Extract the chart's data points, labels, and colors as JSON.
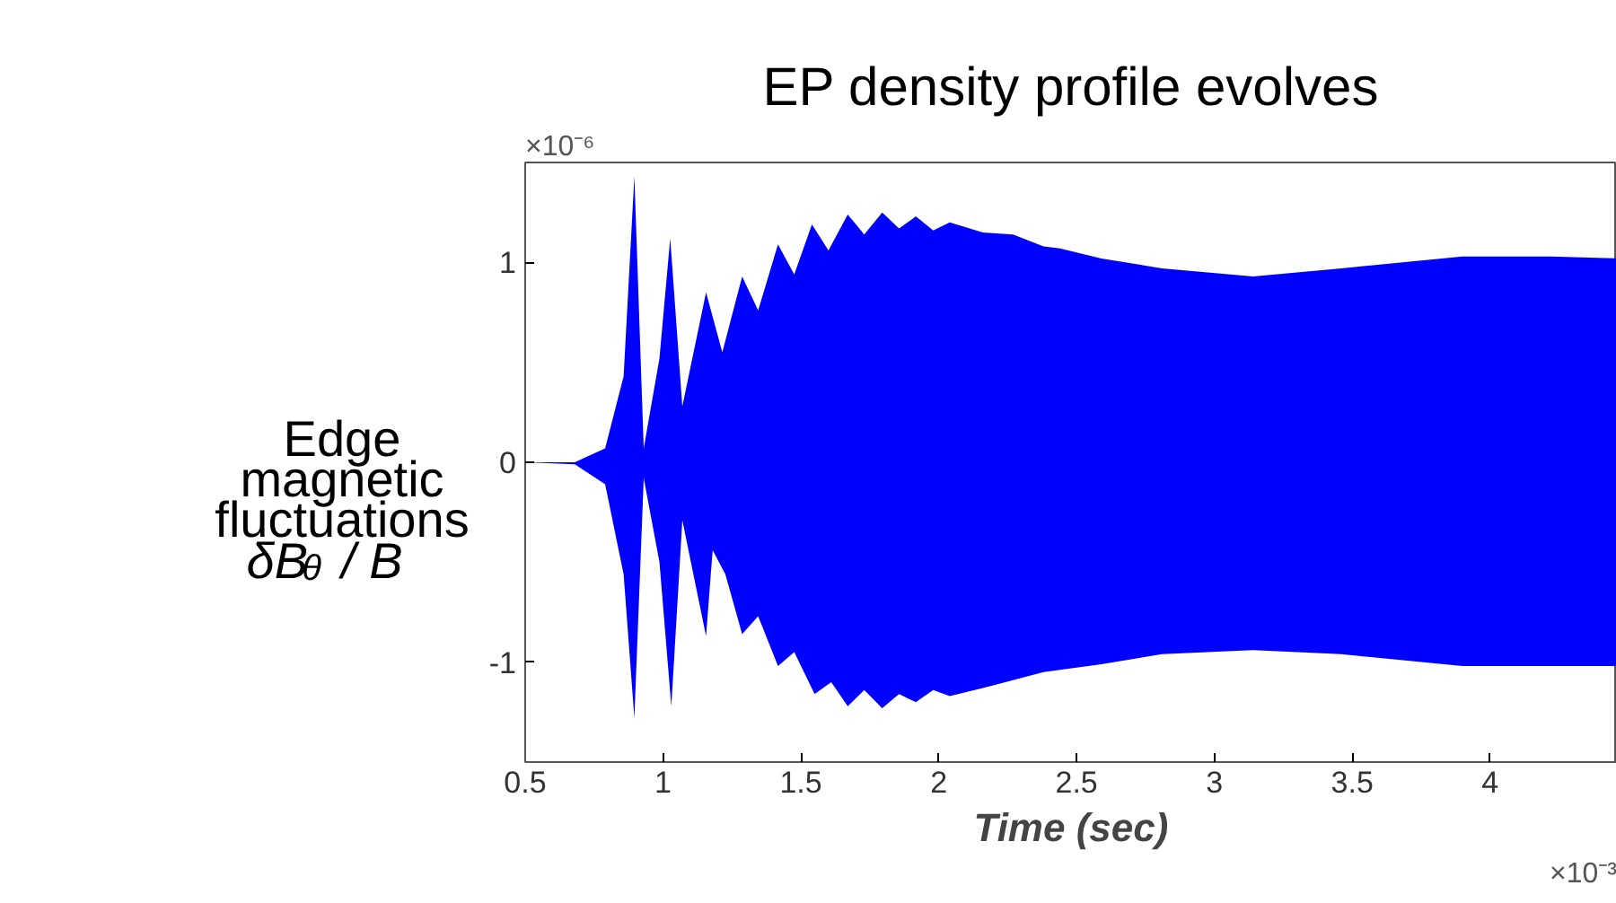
{
  "chart_data": {
    "type": "area",
    "title": "EP density profile evolves",
    "xlabel": "Time (sec)",
    "ylabel": "Edge\nmagnetic\nfluctuations\nδB$_{θ}$ / B",
    "annotations": [
      "×10⁻⁶",
      "×10⁻³"
    ],
    "series": [
      {
        "color": "#0000ff",
        "x": [
          0.5,
          0.68,
          0.79,
          0.857,
          0.896,
          0.93,
          0.987,
          1.026,
          1.07,
          1.156,
          1.215,
          1.287,
          1.345,
          1.417,
          1.476,
          1.54,
          1.6,
          1.67,
          1.73,
          1.795,
          1.856,
          1.917,
          1.98,
          2.04,
          2.16,
          2.27,
          2.38,
          2.44,
          2.59,
          2.81,
          3.14,
          3.46,
          3.9,
          4.22,
          4.46
        ],
        "values": [
          0,
          0,
          0.07,
          0.43,
          1.43,
          0.07,
          0.52,
          1.12,
          0.28,
          0.85,
          0.55,
          0.93,
          0.76,
          1.09,
          0.94,
          1.19,
          1.06,
          1.24,
          1.14,
          1.25,
          1.17,
          1.23,
          1.16,
          1.2,
          1.15,
          1.14,
          1.08,
          1.07,
          1.02,
          0.97,
          0.93,
          0.97,
          1.03,
          1.03,
          1.02
        ]
      },
      {
        "color": "#0000ff",
        "x": [
          0.5,
          0.68,
          0.79,
          0.857,
          0.896,
          0.93,
          0.987,
          1.03,
          1.07,
          1.156,
          1.18,
          1.226,
          1.287,
          1.345,
          1.417,
          1.476,
          1.55,
          1.61,
          1.67,
          1.73,
          1.795,
          1.856,
          1.917,
          1.98,
          2.04,
          2.16,
          2.38,
          2.59,
          2.81,
          3.14,
          3.46,
          3.9,
          4.46
        ],
        "values": [
          0,
          -0.01,
          -0.11,
          -0.56,
          -1.28,
          -0.08,
          -0.5,
          -1.22,
          -0.29,
          -0.87,
          -0.44,
          -0.56,
          -0.86,
          -0.77,
          -1.02,
          -0.95,
          -1.16,
          -1.1,
          -1.22,
          -1.14,
          -1.23,
          -1.16,
          -1.2,
          -1.14,
          -1.17,
          -1.13,
          -1.05,
          -1.01,
          -0.96,
          -0.94,
          -0.96,
          -1.02,
          -1.02
        ]
      }
    ],
    "xlim": [
      0.5,
      4.46
    ],
    "xticks": [
      0.5,
      1,
      1.5,
      2,
      2.5,
      3,
      3.5,
      4
    ],
    "ylim": [
      -1.5,
      1.5
    ],
    "yticks": [
      -1,
      0,
      1
    ],
    "grid": false
  }
}
